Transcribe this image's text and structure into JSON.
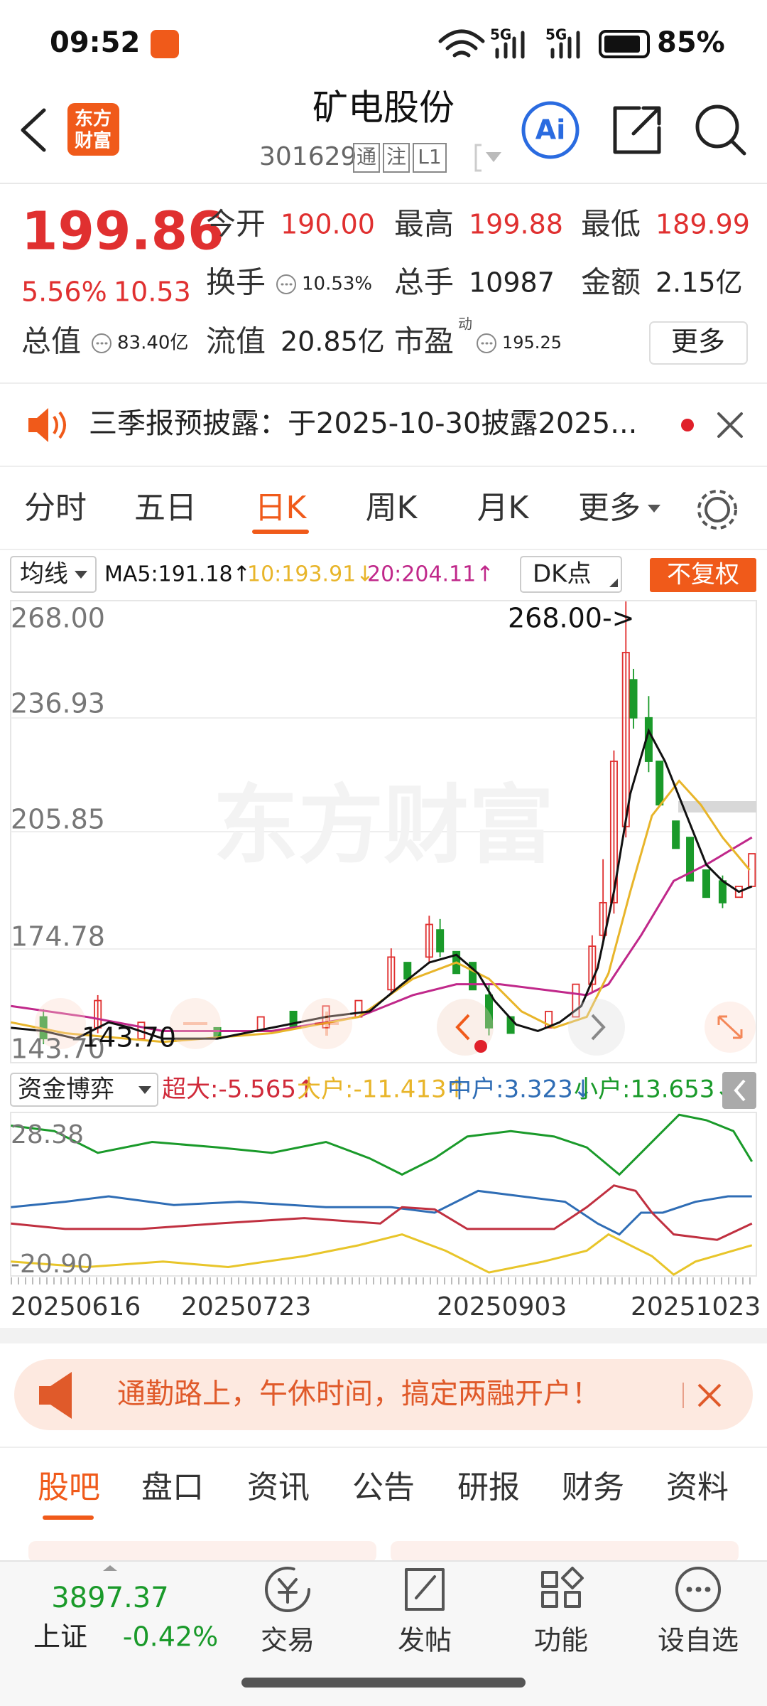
{
  "status": {
    "time": "09:52",
    "battery": "85%",
    "signal": [
      "5G",
      "5G"
    ]
  },
  "header": {
    "logo": [
      "东方",
      "财富"
    ],
    "title": "矿电股份",
    "code": "301629",
    "tags": [
      "通",
      "注",
      "L1"
    ],
    "ai": "Ai"
  },
  "quote": {
    "price": "199.86",
    "change_pct": "5.56%",
    "change": "10.53",
    "fields": [
      {
        "label": "今开",
        "value": "190.00"
      },
      {
        "label": "最高",
        "value": "199.88"
      },
      {
        "label": "最低",
        "value": "189.99"
      },
      {
        "label": "换手",
        "value": "10.53%"
      },
      {
        "label": "总手",
        "value": "10987"
      },
      {
        "label": "金额",
        "value": "2.15亿"
      },
      {
        "label": "总值",
        "value": "83.40亿"
      },
      {
        "label": "流值",
        "value": "20.85亿"
      },
      {
        "label": "市盈",
        "sup": "动",
        "value": "195.25"
      }
    ],
    "more": "更多"
  },
  "notice": {
    "text": "三季报预披露：于2025-10-30披露2025..."
  },
  "tabs": [
    "分时",
    "五日",
    "日K",
    "周K",
    "月K",
    "更多"
  ],
  "indicator": {
    "selector": "均线",
    "ma": [
      "MA5:191.18↑",
      "10:193.91↓",
      "20:204.11↑"
    ],
    "dk": "DK点",
    "adjust": "不复权"
  },
  "kline": {
    "yticks": [
      "268.00",
      "236.93",
      "205.85",
      "174.78",
      "143.70"
    ],
    "high": "268.00->",
    "low": "143.70",
    "watermark": "东方财富"
  },
  "flow": {
    "selector": "资金博弈",
    "items": [
      "超大:-5.565↑",
      "大户:-11.413↑",
      "中户:3.323↓",
      "小户:13.653↓"
    ],
    "yticks": [
      "28.38",
      "-20.90"
    ],
    "dates": [
      "20250616",
      "20250723",
      "20250903",
      "20251023"
    ]
  },
  "banner": {
    "text": "通勤路上，午休时间，搞定两融开户！"
  },
  "subtabs": [
    "股吧",
    "盘口",
    "资讯",
    "公告",
    "研报",
    "财务",
    "资料"
  ],
  "footer": {
    "index_value": "3897.37",
    "index_name": "上证",
    "index_change": "-0.42%",
    "nav": [
      "交易",
      "发帖",
      "功能",
      "设自选"
    ]
  }
}
